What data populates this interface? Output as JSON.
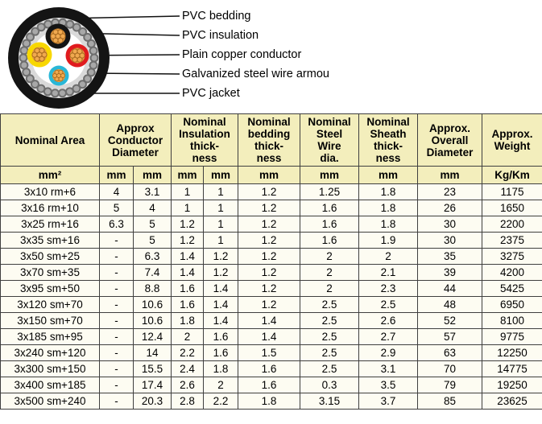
{
  "diagram": {
    "labels": [
      "PVC bedding",
      "PVC insulation",
      "Plain copper conductor",
      "Galvanized steel wire armou",
      "PVC jacket"
    ]
  },
  "colors": {
    "jacket": "#141414",
    "armour_base": "#e2e2e2",
    "bead": "#6e6e6e",
    "bead_light": "#a8a8a8",
    "bedding_ring": "#d9d9d9",
    "interior": "#ffffff",
    "ins_black": "#141414",
    "ins_red": "#e01b1e",
    "ins_yellow": "#f8d700",
    "ins_cyan": "#29b7d7",
    "copper": "#e59a40",
    "strand": "#f0a94f",
    "strand_edge": "#a86a20",
    "leader": "#111111",
    "header_bg": "#f3eebc",
    "row_bg": "#fdfcf2",
    "border": "#3f3f3f"
  },
  "table": {
    "header": [
      "Nominal Area",
      "Approx\nConductor\nDiameter",
      "Nominal\nInsulation\nthick-\nness",
      "Nominal\nbedding\nthick-\nness",
      "Nominal\nSteel\nWire\ndia.",
      "Nominal\nSheath\nthick-\nness",
      "Approx.\nOverall\nDiameter",
      "Approx.\nWeight"
    ],
    "units": [
      "mm²",
      "mm",
      "mm",
      "mm",
      "mm",
      "mm",
      "mm",
      "mm",
      "mm",
      "Kg/Km"
    ],
    "rows": [
      [
        "3x10 rm+6",
        "4",
        "3.1",
        "1",
        "1",
        "1.2",
        "1.25",
        "1.8",
        "23",
        "1175"
      ],
      [
        "3x16 rm+10",
        "5",
        "4",
        "1",
        "1",
        "1.2",
        "1.6",
        "1.8",
        "26",
        "1650"
      ],
      [
        "3x25 rm+16",
        "6.3",
        "5",
        "1.2",
        "1",
        "1.2",
        "1.6",
        "1.8",
        "30",
        "2200"
      ],
      [
        "3x35 sm+16",
        "-",
        "5",
        "1.2",
        "1",
        "1.2",
        "1.6",
        "1.9",
        "30",
        "2375"
      ],
      [
        "3x50 sm+25",
        "-",
        "6.3",
        "1.4",
        "1.2",
        "1.2",
        "2",
        "2",
        "35",
        "3275"
      ],
      [
        "3x70 sm+35",
        "-",
        "7.4",
        "1.4",
        "1.2",
        "1.2",
        "2",
        "2.1",
        "39",
        "4200"
      ],
      [
        "3x95 sm+50",
        "-",
        "8.8",
        "1.6",
        "1.4",
        "1.2",
        "2",
        "2.3",
        "44",
        "5425"
      ],
      [
        "3x120 sm+70",
        "-",
        "10.6",
        "1.6",
        "1.4",
        "1.2",
        "2.5",
        "2.5",
        "48",
        "6950"
      ],
      [
        "3x150 sm+70",
        "-",
        "10.6",
        "1.8",
        "1.4",
        "1.4",
        "2.5",
        "2.6",
        "52",
        "8100"
      ],
      [
        "3x185 sm+95",
        "-",
        "12.4",
        "2",
        "1.6",
        "1.4",
        "2.5",
        "2.7",
        "57",
        "9775"
      ],
      [
        "3x240 sm+120",
        "-",
        "14",
        "2.2",
        "1.6",
        "1.5",
        "2.5",
        "2.9",
        "63",
        "12250"
      ],
      [
        "3x300 sm+150",
        "-",
        "15.5",
        "2.4",
        "1.8",
        "1.6",
        "2.5",
        "3.1",
        "70",
        "14775"
      ],
      [
        "3x400 sm+185",
        "-",
        "17.4",
        "2.6",
        "2",
        "1.6",
        "0.3",
        "3.5",
        "79",
        "19250"
      ],
      [
        "3x500 sm+240",
        "-",
        "20.3",
        "2.8",
        "2.2",
        "1.8",
        "3.15",
        "3.7",
        "85",
        "23625"
      ]
    ]
  }
}
